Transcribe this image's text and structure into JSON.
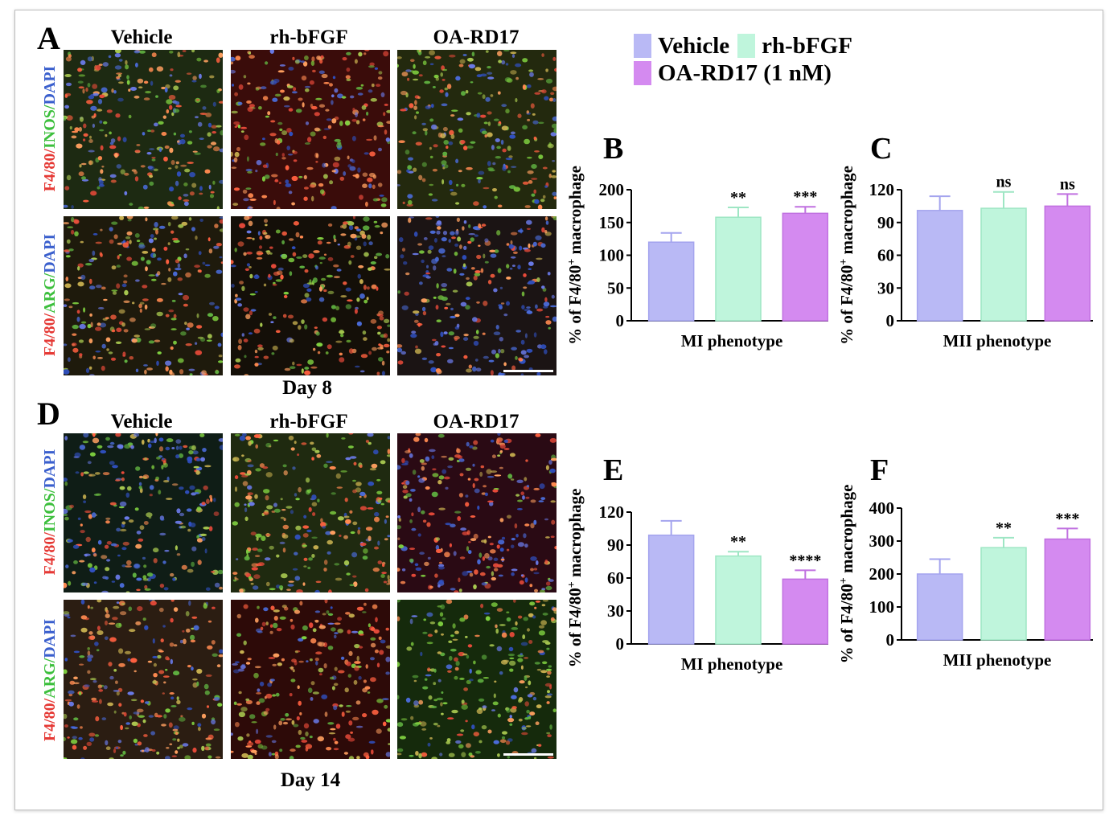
{
  "panels": {
    "A": "A",
    "B": "B",
    "C": "C",
    "D": "D",
    "E": "E",
    "F": "F"
  },
  "micrographs": {
    "columns": [
      "Vehicle",
      "rh-bFGF",
      "OA-RD17"
    ],
    "marker_rows": [
      {
        "parts": [
          {
            "text": "F4/80",
            "color": "red"
          },
          {
            "text": "/",
            "color": "red"
          },
          {
            "text": "INOS",
            "color": "green"
          },
          {
            "text": "/",
            "color": "green"
          },
          {
            "text": "DAPI",
            "color": "blue"
          }
        ]
      },
      {
        "parts": [
          {
            "text": "F4/80",
            "color": "red"
          },
          {
            "text": "/",
            "color": "red"
          },
          {
            "text": "ARG",
            "color": "green"
          },
          {
            "text": "/",
            "color": "green"
          },
          {
            "text": "DAPI",
            "color": "blue"
          }
        ]
      }
    ],
    "day8_label": "Day 8",
    "day14_label": "Day 14"
  },
  "legend": [
    {
      "label": "Vehicle",
      "color": "#b9b9f5"
    },
    {
      "label": "rh-bFGF",
      "color": "#bff5dc"
    },
    {
      "label": "OA-RD17 (1 nM)",
      "color": "#d48af0"
    }
  ],
  "colors": {
    "red": "#e53935",
    "green": "#3cbf3c",
    "blue": "#3a5fcd"
  },
  "chart_data": [
    {
      "panel": "B",
      "type": "bar",
      "ylabel": "% of F4/80+ macrophage",
      "xlabel": "MI phenotype",
      "categories": [
        "Vehicle",
        "rh-bFGF",
        "OA-RD17 (1 nM)"
      ],
      "values": [
        120,
        158,
        164
      ],
      "errors": [
        14,
        15,
        10
      ],
      "sig": [
        "",
        "**",
        "***"
      ],
      "ylim": [
        0,
        200
      ],
      "yticks": [
        0,
        50,
        100,
        150,
        200
      ]
    },
    {
      "panel": "C",
      "type": "bar",
      "ylabel": "% of F4/80+ macrophage",
      "xlabel": "MII phenotype",
      "categories": [
        "Vehicle",
        "rh-bFGF",
        "OA-RD17 (1 nM)"
      ],
      "values": [
        101,
        103,
        105
      ],
      "errors": [
        13,
        15,
        11
      ],
      "sig": [
        "",
        "ns",
        "ns"
      ],
      "ylim": [
        0,
        120
      ],
      "yticks": [
        0,
        30,
        60,
        90,
        120
      ]
    },
    {
      "panel": "E",
      "type": "bar",
      "ylabel": "% of F4/80+ macrophage",
      "xlabel": "MI phenotype",
      "categories": [
        "Vehicle",
        "rh-bFGF",
        "OA-RD17 (1 nM)"
      ],
      "values": [
        99,
        80,
        59
      ],
      "errors": [
        13,
        4,
        8
      ],
      "sig": [
        "",
        "**",
        "****"
      ],
      "ylim": [
        0,
        120
      ],
      "yticks": [
        0,
        30,
        60,
        90,
        120
      ]
    },
    {
      "panel": "F",
      "type": "bar",
      "ylabel": "% of F4/80+ macrophage",
      "xlabel": "MII phenotype",
      "categories": [
        "Vehicle",
        "rh-bFGF",
        "OA-RD17 (1 nM)"
      ],
      "values": [
        200,
        280,
        306
      ],
      "errors": [
        45,
        30,
        32
      ],
      "sig": [
        "",
        "**",
        "***"
      ],
      "ylim": [
        0,
        400
      ],
      "yticks": [
        0,
        100,
        200,
        300,
        400
      ]
    }
  ]
}
